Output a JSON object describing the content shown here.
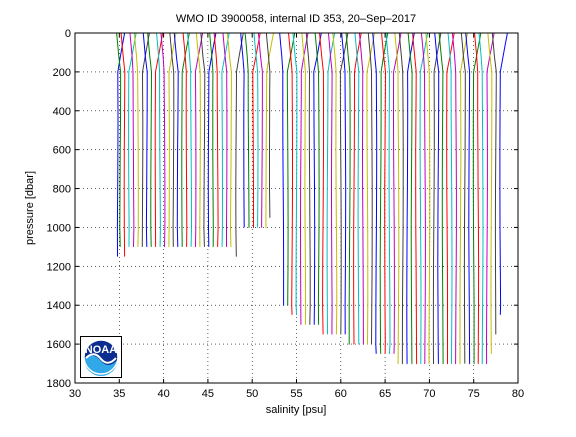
{
  "chart_data": {
    "type": "line",
    "title": "WMO ID 3900058, internal ID 353, 20–Sep–2017",
    "xlabel": "salinity [psu]",
    "ylabel": "pressure [dbar]",
    "xlim": [
      30,
      80
    ],
    "ylim": [
      0,
      1800
    ],
    "y_reversed": true,
    "grid": true,
    "grid_style": "dotted",
    "x_ticks": [
      30,
      35,
      40,
      45,
      50,
      55,
      60,
      65,
      70,
      75,
      80
    ],
    "y_ticks": [
      0,
      200,
      400,
      600,
      800,
      1000,
      1200,
      1400,
      1600,
      1800
    ],
    "line_colors": [
      "#0000ff",
      "#008000",
      "#ff0000",
      "#00bfbf",
      "#bf00bf",
      "#bfbf00",
      "#404040"
    ],
    "series_description_free": true,
    "profiles": [
      {
        "x": 34.8,
        "bottom": 1150
      },
      {
        "x": 35.1,
        "bottom": 1100
      },
      {
        "x": 35.6,
        "bottom": 1150
      },
      {
        "x": 36.1,
        "bottom": 1100
      },
      {
        "x": 36.6,
        "bottom": 1100
      },
      {
        "x": 37.1,
        "bottom": 1100
      },
      {
        "x": 37.6,
        "bottom": 1100
      },
      {
        "x": 38.1,
        "bottom": 1100
      },
      {
        "x": 38.6,
        "bottom": 1100
      },
      {
        "x": 39.1,
        "bottom": 1100
      },
      {
        "x": 39.6,
        "bottom": 1100
      },
      {
        "x": 40.1,
        "bottom": 1100
      },
      {
        "x": 40.6,
        "bottom": 1100
      },
      {
        "x": 41.1,
        "bottom": 1100
      },
      {
        "x": 41.6,
        "bottom": 1100
      },
      {
        "x": 42.1,
        "bottom": 1100
      },
      {
        "x": 42.6,
        "bottom": 1100
      },
      {
        "x": 43.1,
        "bottom": 1100
      },
      {
        "x": 43.6,
        "bottom": 1100
      },
      {
        "x": 44.1,
        "bottom": 1100
      },
      {
        "x": 44.6,
        "bottom": 1100
      },
      {
        "x": 45.1,
        "bottom": 1100
      },
      {
        "x": 45.6,
        "bottom": 1100
      },
      {
        "x": 46.1,
        "bottom": 1100
      },
      {
        "x": 46.6,
        "bottom": 1100
      },
      {
        "x": 47.1,
        "bottom": 1100
      },
      {
        "x": 47.6,
        "bottom": 1100
      },
      {
        "x": 48.2,
        "bottom": 1150
      },
      {
        "x": 49.1,
        "bottom": 1000
      },
      {
        "x": 49.6,
        "bottom": 1000
      },
      {
        "x": 50.1,
        "bottom": 1000
      },
      {
        "x": 50.6,
        "bottom": 1000
      },
      {
        "x": 51.1,
        "bottom": 1000
      },
      {
        "x": 51.6,
        "bottom": 1000
      },
      {
        "x": 52.0,
        "bottom": 950
      },
      {
        "x": 53.5,
        "bottom": 1400
      },
      {
        "x": 54.0,
        "bottom": 1400
      },
      {
        "x": 54.5,
        "bottom": 1450
      },
      {
        "x": 55.0,
        "bottom": 1450
      },
      {
        "x": 55.5,
        "bottom": 1500
      },
      {
        "x": 56.0,
        "bottom": 1500
      },
      {
        "x": 56.5,
        "bottom": 1500
      },
      {
        "x": 57.0,
        "bottom": 1500
      },
      {
        "x": 57.5,
        "bottom": 1500
      },
      {
        "x": 58.0,
        "bottom": 1550
      },
      {
        "x": 58.5,
        "bottom": 1550
      },
      {
        "x": 59.0,
        "bottom": 1550
      },
      {
        "x": 59.5,
        "bottom": 1550
      },
      {
        "x": 60.0,
        "bottom": 1550
      },
      {
        "x": 60.5,
        "bottom": 1550
      },
      {
        "x": 61.0,
        "bottom": 1600
      },
      {
        "x": 61.5,
        "bottom": 1600
      },
      {
        "x": 62.0,
        "bottom": 1600
      },
      {
        "x": 62.5,
        "bottom": 1600
      },
      {
        "x": 63.0,
        "bottom": 1600
      },
      {
        "x": 63.5,
        "bottom": 1600
      },
      {
        "x": 64.0,
        "bottom": 1650
      },
      {
        "x": 64.5,
        "bottom": 1650
      },
      {
        "x": 65.0,
        "bottom": 1650
      },
      {
        "x": 65.5,
        "bottom": 1650
      },
      {
        "x": 66.0,
        "bottom": 1650
      },
      {
        "x": 66.5,
        "bottom": 1700
      },
      {
        "x": 67.0,
        "bottom": 1700
      },
      {
        "x": 67.5,
        "bottom": 1700
      },
      {
        "x": 68.0,
        "bottom": 1700
      },
      {
        "x": 68.5,
        "bottom": 1700
      },
      {
        "x": 69.0,
        "bottom": 1700
      },
      {
        "x": 69.5,
        "bottom": 1700
      },
      {
        "x": 70.0,
        "bottom": 1700
      },
      {
        "x": 70.5,
        "bottom": 1700
      },
      {
        "x": 71.0,
        "bottom": 1700
      },
      {
        "x": 71.5,
        "bottom": 1700
      },
      {
        "x": 72.0,
        "bottom": 1700
      },
      {
        "x": 72.5,
        "bottom": 1700
      },
      {
        "x": 73.0,
        "bottom": 1700
      },
      {
        "x": 73.5,
        "bottom": 1700
      },
      {
        "x": 74.0,
        "bottom": 1700
      },
      {
        "x": 74.5,
        "bottom": 1700
      },
      {
        "x": 75.0,
        "bottom": 1700
      },
      {
        "x": 75.5,
        "bottom": 1700
      },
      {
        "x": 76.0,
        "bottom": 1700
      },
      {
        "x": 76.5,
        "bottom": 1700
      },
      {
        "x": 77.0,
        "bottom": 1650
      },
      {
        "x": 77.5,
        "bottom": 1550
      },
      {
        "x": 78.0,
        "bottom": 1450
      }
    ],
    "logo_text": "NOAA"
  }
}
